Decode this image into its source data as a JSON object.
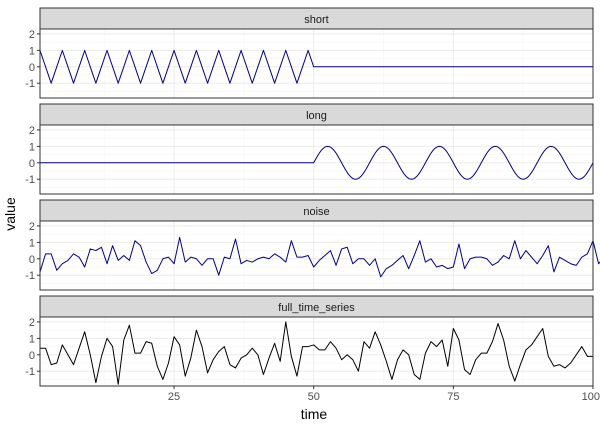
{
  "chart_data": {
    "type": "line",
    "facets": "vertical",
    "xlabel": "time",
    "ylabel": "value",
    "xlim": [
      1,
      100
    ],
    "ylim": [
      -1.9,
      2.3
    ],
    "x_ticks": [
      25,
      50,
      75,
      100
    ],
    "y_ticks": [
      -1,
      0,
      1,
      2
    ],
    "panels": [
      {
        "name": "short",
        "color": "#00008B",
        "generator": "triangle",
        "period": 4,
        "amplitude": 1,
        "active_range": [
          1,
          50
        ]
      },
      {
        "name": "long",
        "color": "#00008B",
        "generator": "sine",
        "period": 10,
        "amplitude": 1,
        "active_range": [
          50,
          100
        ]
      },
      {
        "name": "noise",
        "color": "#00008B",
        "generator": "values",
        "x_start": 1,
        "values": [
          -0.8,
          0.3,
          0.3,
          -0.7,
          -0.3,
          -0.1,
          0.3,
          0.1,
          -0.5,
          0.6,
          0.5,
          0.7,
          -0.3,
          0.8,
          -0.1,
          0.2,
          -0.1,
          1.1,
          0.8,
          -0.2,
          -0.9,
          -0.7,
          0.0,
          0.1,
          -0.3,
          1.3,
          -0.2,
          0.1,
          0.0,
          -0.4,
          0.0,
          0.0,
          -1.0,
          0.1,
          0.0,
          1.2,
          -0.3,
          -0.1,
          -0.2,
          0.0,
          0.1,
          0.0,
          0.3,
          0.1,
          -0.2,
          1.1,
          0.1,
          0.1,
          0.2,
          -0.5,
          -0.1,
          0.2,
          0.5,
          -0.4,
          0.6,
          0.7,
          -0.3,
          0.0,
          0.0,
          -0.4,
          0.0,
          -1.1,
          -0.6,
          -0.4,
          -0.1,
          0.2,
          -0.6,
          0.2,
          1.1,
          -0.2,
          0.0,
          -0.5,
          -0.4,
          -0.6,
          -0.5,
          0.9,
          -0.6,
          0.0,
          0.1,
          0.1,
          0.0,
          -0.4,
          -0.2,
          0.2,
          0.0,
          1.1,
          0.0,
          0.5,
          0.1,
          -0.3,
          0.2,
          0.8,
          -0.8,
          0.1,
          -0.1,
          -0.3,
          -0.4,
          0.1,
          0.3,
          1.1,
          -0.3,
          0.1,
          0.4,
          0.1
        ]
      },
      {
        "name": "full_time_series",
        "color": "#000000",
        "generator": "values",
        "x_start": 1,
        "values": [
          0.4,
          0.4,
          -0.6,
          -0.5,
          0.6,
          0.0,
          -0.6,
          0.4,
          1.4,
          0.0,
          -1.7,
          -0.1,
          1.0,
          0.5,
          -1.8,
          0.9,
          1.8,
          0.1,
          0.1,
          0.8,
          0.7,
          -0.7,
          -1.5,
          -0.5,
          1.1,
          0.6,
          -1.3,
          -0.2,
          1.5,
          0.5,
          -1.1,
          -0.3,
          0.2,
          0.5,
          -0.6,
          -0.8,
          -0.2,
          0.0,
          0.4,
          0.0,
          -1.2,
          -0.2,
          0.7,
          -0.4,
          2.0,
          -0.1,
          -1.3,
          0.5,
          0.5,
          0.6,
          0.3,
          0.3,
          0.8,
          0.4,
          -0.3,
          0.0,
          -0.3,
          -1.0,
          0.8,
          0.4,
          1.4,
          0.6,
          -0.4,
          -1.5,
          -0.3,
          0.3,
          0.0,
          -1.2,
          -1.5,
          0.1,
          0.8,
          0.5,
          0.9,
          -0.7,
          1.6,
          0.9,
          -0.9,
          -1.2,
          -0.3,
          0.1,
          0.1,
          0.8,
          1.9,
          0.9,
          -0.7,
          -1.6,
          -0.6,
          0.3,
          0.6,
          1.1,
          1.6,
          -0.1,
          -0.7,
          -0.6,
          -0.8,
          -0.5,
          0.0,
          0.5,
          -0.1,
          -0.1
        ]
      }
    ]
  }
}
